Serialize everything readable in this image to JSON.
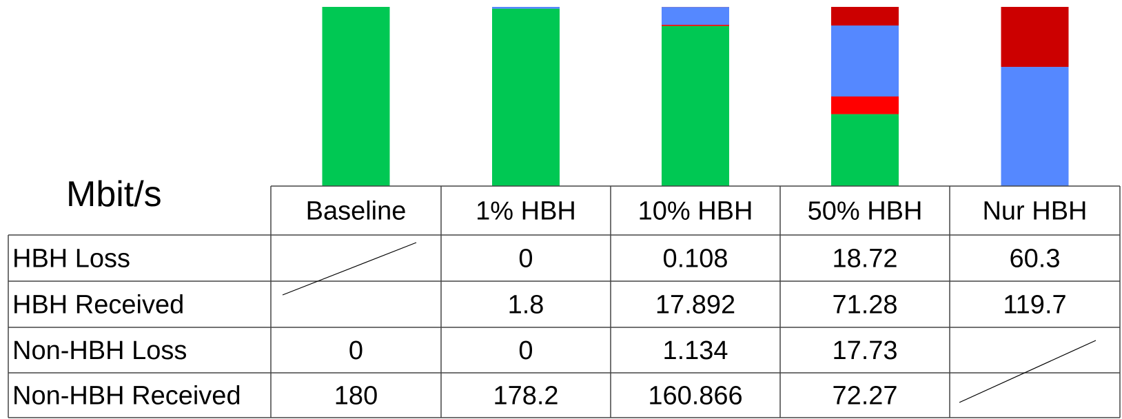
{
  "chart_data": {
    "type": "bar",
    "stacked": true,
    "categories": [
      "Baseline",
      "1% HBH",
      "10% HBH",
      "50% HBH",
      "Nur HBH"
    ],
    "series": [
      {
        "name": "Non-HBH Received",
        "color": "#00c853",
        "values": [
          180,
          178.2,
          160.866,
          72.27,
          0
        ]
      },
      {
        "name": "Non-HBH Loss",
        "color": "#ff0000",
        "values": [
          0,
          0,
          1.134,
          17.73,
          0
        ]
      },
      {
        "name": "HBH Received",
        "color": "#5588ff",
        "values": [
          0,
          1.8,
          17.892,
          71.28,
          119.7
        ]
      },
      {
        "name": "HBH Loss",
        "color": "#cc0000",
        "values": [
          0,
          0,
          0.108,
          18.72,
          60.3
        ]
      }
    ],
    "ylim": [
      0,
      180
    ],
    "title": "",
    "xlabel": "",
    "ylabel": "",
    "legend": "none",
    "grid": false,
    "unit_label": "Mbit/s"
  },
  "table": {
    "headers": [
      "Baseline",
      "1% HBH",
      "10% HBH",
      "50% HBH",
      "Nur HBH"
    ],
    "rows": [
      {
        "label": "HBH Loss",
        "cells": [
          "",
          "0",
          "0.108",
          "18.72",
          "60.3"
        ]
      },
      {
        "label": "HBH Received",
        "cells": [
          "",
          "1.8",
          "17.892",
          "71.28",
          "119.7"
        ]
      },
      {
        "label": "Non-HBH Loss",
        "cells": [
          "0",
          "0",
          "1.134",
          "17.73",
          ""
        ]
      },
      {
        "label": "Non-HBH Received",
        "cells": [
          "180",
          "178.2",
          "160.866",
          "72.27",
          ""
        ]
      }
    ]
  }
}
